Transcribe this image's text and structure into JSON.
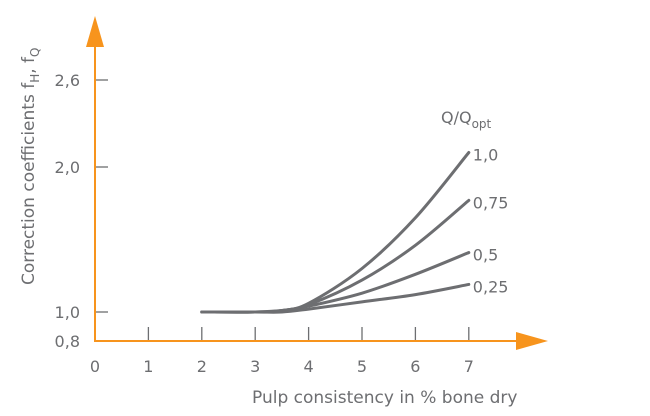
{
  "colors": {
    "axis": "#f7941d",
    "curve": "#6d6e71",
    "text": "#6d6e71",
    "tick": "#6d6e71"
  },
  "chart_data": {
    "type": "line",
    "title": "",
    "xlabel": "Pulp consistency in % bone dry",
    "ylabel": "Correction coefficients f_H, f_Q",
    "ylabel_main": "Correction coefficients f",
    "ylabel_sub1": "H",
    "ylabel_sep": ", f",
    "ylabel_sub2": "Q",
    "xlim": [
      0,
      8.5
    ],
    "ylim": [
      0.8,
      2.8
    ],
    "x_ticks": [
      "0",
      "1",
      "2",
      "3",
      "4",
      "5",
      "6",
      "7"
    ],
    "y_ticks": [
      {
        "value": 2.6,
        "label": "2,6"
      },
      {
        "value": 2.0,
        "label": "2,0"
      },
      {
        "value": 1.0,
        "label": "1,0"
      },
      {
        "value": 0.8,
        "label": "0,8"
      }
    ],
    "grid": false,
    "legend_title": "Q/Q",
    "legend_title_sub": "opt",
    "series": [
      {
        "name": "1,0",
        "x": [
          2,
          3,
          3.5,
          4,
          5,
          6,
          7
        ],
        "values": [
          1.0,
          1.0,
          1.01,
          1.06,
          1.3,
          1.65,
          2.1
        ]
      },
      {
        "name": "0,75",
        "x": [
          2,
          3,
          3.5,
          4,
          5,
          6,
          7
        ],
        "values": [
          1.0,
          1.0,
          1.01,
          1.05,
          1.22,
          1.46,
          1.77
        ]
      },
      {
        "name": "0,5",
        "x": [
          2,
          3,
          3.5,
          4,
          5,
          6,
          7
        ],
        "values": [
          1.0,
          1.0,
          1.01,
          1.04,
          1.13,
          1.26,
          1.41
        ]
      },
      {
        "name": "0,25",
        "x": [
          2,
          3,
          3.5,
          4,
          5,
          6,
          7
        ],
        "values": [
          1.0,
          1.0,
          1.0,
          1.02,
          1.07,
          1.12,
          1.19
        ]
      }
    ]
  }
}
